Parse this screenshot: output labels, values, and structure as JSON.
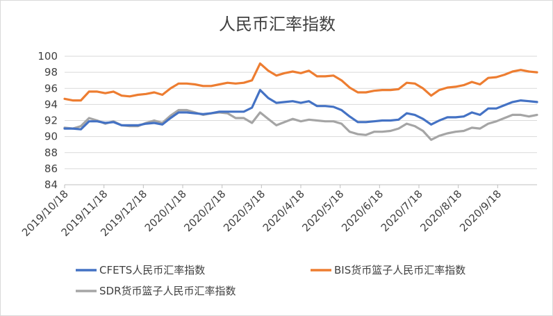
{
  "chart_data": {
    "type": "line",
    "title": "人民币汇率指数",
    "xlabel": "",
    "ylabel": "",
    "ylim": [
      84,
      100
    ],
    "yticks": [
      84,
      86,
      88,
      90,
      92,
      94,
      96,
      98,
      100
    ],
    "x_tick_labels": [
      "2019/10/18",
      "2019/11/18",
      "2019/12/18",
      "2020/1/18",
      "2020/2/18",
      "2020/3/18",
      "2020/4/18",
      "2020/5/18",
      "2020/6/18",
      "2020/7/18",
      "2020/8/18",
      "2020/9/18"
    ],
    "x": [
      "2019/10/18",
      "2019/10/25",
      "2019/11/1",
      "2019/11/8",
      "2019/11/15",
      "2019/11/22",
      "2019/11/29",
      "2019/12/6",
      "2019/12/13",
      "2019/12/20",
      "2019/12/27",
      "2020/1/3",
      "2020/1/10",
      "2020/1/17",
      "2020/1/24",
      "2020/1/31",
      "2020/2/7",
      "2020/2/14",
      "2020/2/21",
      "2020/2/28",
      "2020/3/6",
      "2020/3/13",
      "2020/3/20",
      "2020/3/27",
      "2020/4/3",
      "2020/4/10",
      "2020/4/17",
      "2020/4/24",
      "2020/5/1",
      "2020/5/8",
      "2020/5/15",
      "2020/5/22",
      "2020/5/29",
      "2020/6/5",
      "2020/6/12",
      "2020/6/19",
      "2020/6/26",
      "2020/7/3",
      "2020/7/10",
      "2020/7/17",
      "2020/7/24",
      "2020/7/31",
      "2020/8/7",
      "2020/8/14",
      "2020/8/21",
      "2020/8/28",
      "2020/9/4",
      "2020/9/11",
      "2020/9/18",
      "2020/9/25",
      "2020/10/2",
      "2020/10/9"
    ],
    "series": [
      {
        "name": "CFETS人民币汇率指数",
        "color": "#4472c4",
        "values": [
          91.0,
          91.0,
          90.9,
          91.9,
          91.9,
          91.7,
          91.8,
          91.4,
          91.4,
          91.4,
          91.6,
          91.7,
          91.5,
          92.3,
          93.0,
          93.0,
          92.9,
          92.8,
          92.9,
          93.1,
          93.1,
          93.1,
          93.1,
          93.6,
          95.8,
          94.8,
          94.2,
          94.3,
          94.4,
          94.2,
          94.4,
          93.8,
          93.8,
          93.7,
          93.3,
          92.5,
          91.8,
          91.8,
          91.9,
          92.0,
          92.0,
          92.1,
          92.9,
          92.7,
          92.2,
          91.5,
          92.0,
          92.4,
          92.4,
          92.5,
          93.0,
          92.7
        ]
      },
      {
        "name": "BIS货币篮子人民币汇率指数",
        "color": "#ed7d31",
        "values": [
          94.7,
          94.5,
          94.5,
          95.6,
          95.6,
          95.4,
          95.6,
          95.1,
          95.0,
          95.2,
          95.3,
          95.5,
          95.2,
          96.0,
          96.6,
          96.6,
          96.5,
          96.3,
          96.3,
          96.5,
          96.7,
          96.6,
          96.7,
          97.0,
          99.1,
          98.2,
          97.6,
          97.9,
          98.1,
          97.9,
          98.2,
          97.5,
          97.5,
          97.6,
          97.0,
          96.1,
          95.5,
          95.5,
          95.7,
          95.8,
          95.8,
          95.9,
          96.7,
          96.6,
          96.0,
          95.1,
          95.8,
          96.1,
          96.2,
          96.4,
          96.8,
          96.5
        ]
      },
      {
        "name": "SDR货币篮子人民币汇率指数",
        "color": "#a5a5a5",
        "values": [
          91.1,
          91.0,
          91.3,
          92.3,
          92.0,
          91.6,
          91.9,
          91.4,
          91.3,
          91.3,
          91.7,
          92.0,
          91.7,
          92.6,
          93.3,
          93.3,
          93.0,
          92.7,
          92.9,
          93.0,
          92.9,
          92.3,
          92.3,
          91.7,
          93.0,
          92.2,
          91.4,
          91.8,
          92.2,
          91.9,
          92.1,
          92.0,
          91.9,
          91.9,
          91.6,
          90.6,
          90.3,
          90.2,
          90.6,
          90.6,
          90.7,
          91.0,
          91.6,
          91.3,
          90.7,
          89.6,
          90.1,
          90.4,
          90.6,
          90.7,
          91.1,
          91.0
        ]
      }
    ],
    "extra_tail": {
      "CFETS人民币汇率指数": [
        93.5,
        93.5,
        93.9,
        94.3,
        94.5,
        94.4,
        94.3
      ],
      "BIS货币篮子人民币汇率指数": [
        97.3,
        97.4,
        97.7,
        98.1,
        98.3,
        98.1,
        98.0
      ],
      "SDR货币篮子人民币汇率指数": [
        91.6,
        91.9,
        92.3,
        92.7,
        92.7,
        92.5,
        92.7
      ]
    },
    "grid": true,
    "legend_position": "bottom"
  }
}
